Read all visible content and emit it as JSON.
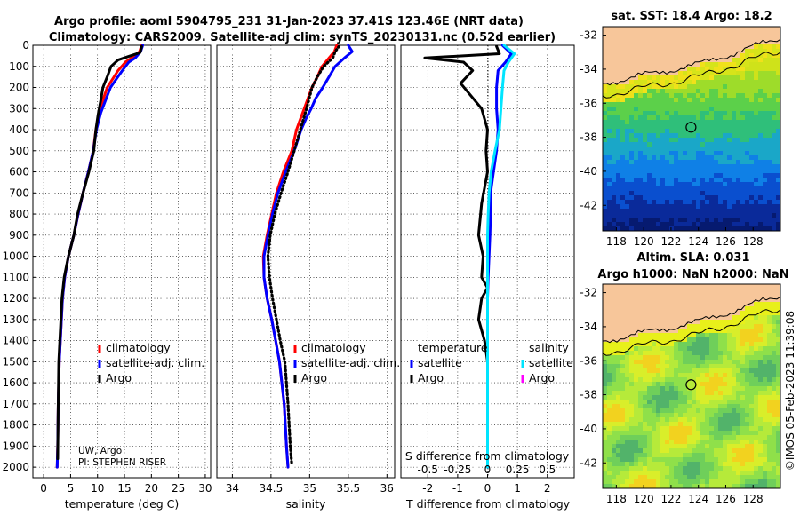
{
  "title_line1": "Argo profile: aoml 5904795_231 31-Jan-2023 37.41S 123.46E (NRT data)",
  "title_line2": "Climatology: CARS2009. Satellite-adj clim: synTS_20230131.nc (0.52d earlier)",
  "sst_title": "sat. SST: 18.4 Argo: 18.2",
  "sla_title1": "Altim. SLA: 0.031",
  "sla_title2": "Argo h1000: NaN h2000: NaN",
  "credit_line1": "UW, Argo",
  "credit_line2": "PI: STEPHEN RISER",
  "timestamp": "©IMOS 05-Feb-2023 11:39:08",
  "colors": {
    "climatology": "#ff0000",
    "satellite": "#0000ff",
    "argo": "#000000",
    "sat_salinity": "#00e5ff",
    "argo_salinity": "#ff00ff",
    "land": "#f7c69a"
  },
  "chart_data": [
    {
      "type": "line",
      "name": "temperature-profile",
      "xlabel": "temperature (deg C)",
      "ylabel": "",
      "xlim": [
        -2,
        31
      ],
      "ylim": [
        0,
        2050
      ],
      "y_reversed": true,
      "xticks": [
        "0",
        "5",
        "10",
        "15",
        "20",
        "25",
        "30"
      ],
      "yticks": [
        "0",
        "100",
        "200",
        "300",
        "400",
        "500",
        "600",
        "700",
        "800",
        "900",
        "1000",
        "1100",
        "1200",
        "1300",
        "1400",
        "1500",
        "1600",
        "1700",
        "1800",
        "1900",
        "2000"
      ],
      "legend": [
        "climatology",
        "satellite-adj. clim.",
        "Argo"
      ],
      "series": [
        {
          "name": "climatology",
          "color": "#ff0000",
          "x": [
            18.2,
            17.8,
            16.3,
            15.2,
            13.8,
            12.8,
            11.8,
            11.0,
            10.4,
            9.7,
            9.2,
            8.3,
            7.3,
            6.4,
            5.6,
            4.6,
            3.9,
            3.5,
            3.3,
            3.1,
            2.9,
            2.7,
            2.6,
            2.5
          ],
          "y": [
            0,
            30,
            60,
            80,
            120,
            160,
            200,
            260,
            320,
            400,
            500,
            600,
            700,
            800,
            900,
            1000,
            1100,
            1200,
            1300,
            1400,
            1500,
            1700,
            1900,
            2000
          ]
        },
        {
          "name": "satellite-adj. clim.",
          "color": "#0000ff",
          "x": [
            18.4,
            18.0,
            17.0,
            15.8,
            14.6,
            13.5,
            12.4,
            11.5,
            10.6,
            9.8,
            9.2,
            8.3,
            7.3,
            6.4,
            5.6,
            4.6,
            3.9,
            3.5,
            3.3,
            3.1,
            2.9,
            2.7,
            2.6,
            2.5
          ],
          "y": [
            0,
            30,
            60,
            80,
            120,
            160,
            200,
            260,
            320,
            400,
            500,
            600,
            700,
            800,
            900,
            1000,
            1100,
            1200,
            1300,
            1400,
            1500,
            1700,
            1900,
            2000
          ]
        },
        {
          "name": "Argo",
          "color": "#000000",
          "x": [
            18.2,
            17.9,
            15.5,
            13.8,
            12.5,
            11.8,
            11.0,
            10.6,
            10.1,
            9.7,
            9.3,
            8.4,
            7.3,
            6.3,
            5.6,
            4.6,
            3.8,
            3.4,
            3.2,
            3.0,
            2.8,
            2.7,
            2.6
          ],
          "y": [
            5,
            35,
            55,
            70,
            100,
            150,
            200,
            260,
            330,
            400,
            500,
            600,
            700,
            800,
            900,
            1000,
            1100,
            1200,
            1300,
            1400,
            1500,
            1700,
            1960
          ]
        }
      ]
    },
    {
      "type": "line",
      "name": "salinity-profile",
      "xlabel": "salinity",
      "ylabel": "",
      "xlim": [
        33.8,
        36.1
      ],
      "ylim": [
        0,
        2050
      ],
      "y_reversed": true,
      "xticks": [
        "34",
        "34.5",
        "35",
        "35.5",
        "36"
      ],
      "legend": [
        "climatology",
        "satellite-adj. clim.",
        "Argo"
      ],
      "series": [
        {
          "name": "climatology",
          "color": "#ff0000",
          "x": [
            35.35,
            35.32,
            35.25,
            35.16,
            35.1,
            35.03,
            34.98,
            34.93,
            34.88,
            34.83,
            34.77,
            34.66,
            34.57,
            34.51,
            34.45,
            34.4,
            34.41,
            34.45,
            34.51,
            34.56,
            34.61,
            34.67,
            34.7,
            34.72
          ],
          "y": [
            0,
            30,
            60,
            100,
            150,
            200,
            250,
            300,
            350,
            400,
            500,
            600,
            700,
            800,
            900,
            1000,
            1100,
            1200,
            1300,
            1400,
            1500,
            1700,
            1900,
            2000
          ]
        },
        {
          "name": "satellite-adj. clim.",
          "color": "#0000ff",
          "x": [
            35.5,
            35.55,
            35.45,
            35.33,
            35.25,
            35.17,
            35.08,
            35.02,
            34.95,
            34.89,
            34.8,
            34.69,
            34.59,
            34.52,
            34.46,
            34.41,
            34.41,
            34.45,
            34.51,
            34.56,
            34.61,
            34.67,
            34.7,
            34.72
          ],
          "y": [
            0,
            30,
            60,
            100,
            150,
            200,
            250,
            300,
            350,
            400,
            500,
            600,
            700,
            800,
            900,
            1000,
            1100,
            1200,
            1300,
            1400,
            1500,
            1700,
            1900,
            2000
          ]
        },
        {
          "name": "Argo",
          "color": "#000000",
          "x": [
            35.38,
            35.33,
            35.3,
            35.18,
            35.1,
            35.03,
            34.96,
            34.88,
            34.8,
            34.72,
            34.63,
            34.55,
            34.49,
            34.46,
            34.48,
            34.52,
            34.57,
            34.62,
            34.68,
            34.72,
            34.75,
            34.77
          ],
          "y": [
            5,
            30,
            60,
            100,
            150,
            200,
            300,
            400,
            500,
            600,
            700,
            800,
            900,
            1000,
            1100,
            1200,
            1300,
            1400,
            1500,
            1700,
            1900,
            1990
          ]
        }
      ]
    },
    {
      "type": "line",
      "name": "difference-profile",
      "xlabel": "T difference from climatology",
      "x2label": "S difference from climatology",
      "xlim": [
        -2.9,
        2.9
      ],
      "ylim": [
        0,
        2050
      ],
      "y_reversed": true,
      "xticks": [
        "-2",
        "-1",
        "0",
        "1",
        "2"
      ],
      "x2ticks": [
        "-0.5",
        "-0.25",
        "0",
        "0.25",
        "0.5"
      ],
      "legend_groups": [
        "temperature",
        "salinity"
      ],
      "legend": [
        "satellite",
        "Argo",
        "satellite",
        "Argo"
      ],
      "series": [
        {
          "name": "temperature satellite",
          "color": "#0000ff",
          "x": [
            0.5,
            0.8,
            0.6,
            0.35,
            0.3,
            0.3,
            0.35,
            0.3,
            0.2,
            0.1,
            0.1,
            0.08,
            0.05,
            0.02,
            0.0,
            0.0,
            0.0
          ],
          "y": [
            0,
            40,
            80,
            120,
            200,
            300,
            400,
            500,
            600,
            700,
            800,
            900,
            1000,
            1100,
            1200,
            1500,
            2000
          ]
        },
        {
          "name": "temperature Argo",
          "color": "#000000",
          "x": [
            0.3,
            0.4,
            -2.1,
            -0.8,
            -0.5,
            -0.9,
            -0.2,
            0.0,
            -0.05,
            0.0,
            -0.2,
            -0.3,
            -0.15,
            -0.2,
            0.0,
            -0.2,
            -0.3,
            -0.1,
            0.0,
            0.0
          ],
          "y": [
            5,
            40,
            60,
            80,
            120,
            180,
            300,
            400,
            500,
            600,
            750,
            900,
            1000,
            1100,
            1150,
            1200,
            1300,
            1400,
            1500,
            1950
          ]
        },
        {
          "name": "salinity satellite",
          "color": "#00e5ff",
          "x": [
            0.55,
            0.9,
            0.7,
            0.55,
            0.5,
            0.45,
            0.4,
            0.25,
            0.12,
            0.05,
            0.02,
            0.0,
            0.0
          ],
          "y": [
            0,
            40,
            80,
            120,
            200,
            300,
            400,
            500,
            600,
            700,
            800,
            900,
            2000
          ]
        },
        {
          "name": "salinity Argo",
          "color": "#ff00ff",
          "x": [],
          "y": []
        }
      ]
    },
    {
      "type": "heatmap",
      "name": "sst-map",
      "title": "sat. SST: 18.4 Argo: 18.2",
      "xlim": [
        117,
        130
      ],
      "ylim": [
        -43.5,
        -31.5
      ],
      "xticks": [
        "118",
        "120",
        "122",
        "124",
        "126",
        "128"
      ],
      "yticks": [
        "-32",
        "-34",
        "-36",
        "-38",
        "-40",
        "-42"
      ],
      "argo_location": [
        123.46,
        -37.41
      ]
    },
    {
      "type": "heatmap",
      "name": "sla-map",
      "title": "Altim. SLA: 0.031",
      "xlim": [
        117,
        130
      ],
      "ylim": [
        -43.5,
        -31.5
      ],
      "xticks": [
        "118",
        "120",
        "122",
        "124",
        "126",
        "128"
      ],
      "yticks": [
        "-32",
        "-34",
        "-36",
        "-38",
        "-40",
        "-42"
      ],
      "argo_location": [
        123.46,
        -37.41
      ]
    }
  ]
}
